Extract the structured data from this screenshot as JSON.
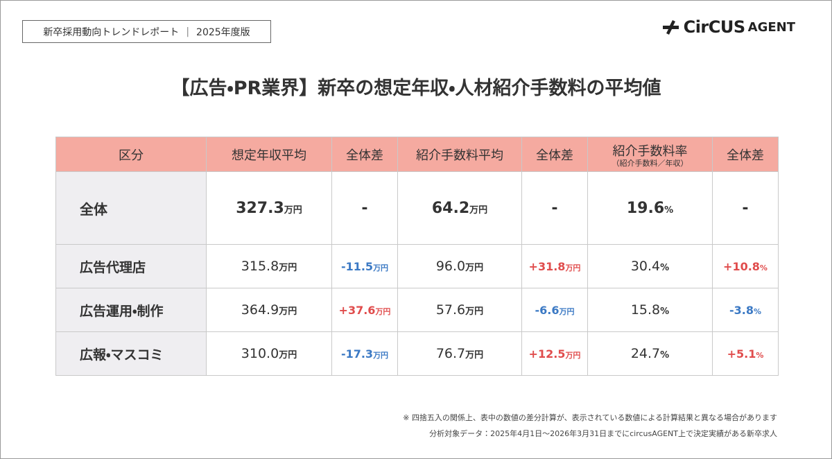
{
  "header": {
    "report": "新卒採用動向トレンドレポート",
    "edition": "2025年度版",
    "logo": {
      "brand": "CirCUS",
      "sub": "AGENT"
    }
  },
  "title": "【広告・PR業界】新卒の想定年収・人材紹介手数料の平均値",
  "table": {
    "columns": [
      {
        "label": "区分"
      },
      {
        "label": "想定年収平均"
      },
      {
        "label": "全体差"
      },
      {
        "label": "紹介手数料平均"
      },
      {
        "label": "全体差"
      },
      {
        "label": "紹介手数料率",
        "sub": "（紹介手数料／年収）"
      },
      {
        "label": "全体差"
      }
    ],
    "rows": [
      {
        "label": "全体",
        "cells": [
          {
            "value": "327.3",
            "unit": "万円"
          },
          {
            "value": "-"
          },
          {
            "value": "64.2",
            "unit": "万円"
          },
          {
            "value": "-"
          },
          {
            "value": "19.6",
            "unit": "%"
          },
          {
            "value": "-"
          }
        ]
      },
      {
        "label": "広告代理店",
        "cells": [
          {
            "value": "315.8",
            "unit": "万円"
          },
          {
            "value": "-11.5",
            "unit": "万円"
          },
          {
            "value": "96.0",
            "unit": "万円"
          },
          {
            "value": "+31.8",
            "unit": "万円"
          },
          {
            "value": "30.4",
            "unit": "%"
          },
          {
            "value": "+10.8",
            "unit": "%"
          }
        ]
      },
      {
        "label": "広告運用・制作",
        "cells": [
          {
            "value": "364.9",
            "unit": "万円"
          },
          {
            "value": "+37.6",
            "unit": "万円"
          },
          {
            "value": "57.6",
            "unit": "万円"
          },
          {
            "value": "-6.6",
            "unit": "万円"
          },
          {
            "value": "15.8",
            "unit": "%"
          },
          {
            "value": "-3.8",
            "unit": "%"
          }
        ]
      },
      {
        "label": "広報・マスコミ",
        "cells": [
          {
            "value": "310.0",
            "unit": "万円"
          },
          {
            "value": "-17.3",
            "unit": "万円"
          },
          {
            "value": "76.7",
            "unit": "万円"
          },
          {
            "value": "+12.5",
            "unit": "万円"
          },
          {
            "value": "24.7",
            "unit": "%"
          },
          {
            "value": "+5.1",
            "unit": "%"
          }
        ]
      }
    ]
  },
  "notes": [
    "※ 四捨五入の関係上、表中の数値の差分計算が、表示されている数値による計算結果と異なる場合があります",
    "分析対象データ：2025年4月1日〜2026年3月31日までにcircusAGENT上で決定実績がある新卒求人"
  ]
}
